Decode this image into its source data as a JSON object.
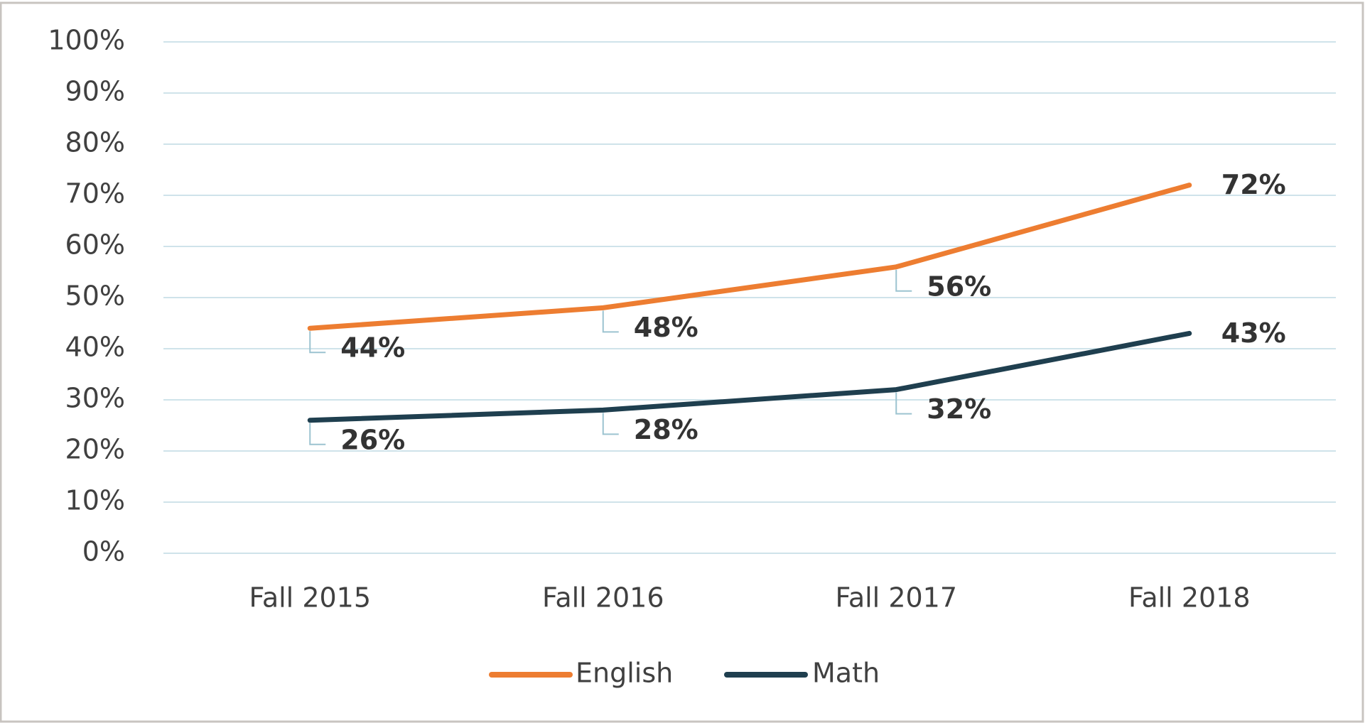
{
  "chart_data": {
    "type": "line",
    "categories": [
      "Fall 2015",
      "Fall 2016",
      "Fall 2017",
      "Fall 2018"
    ],
    "series": [
      {
        "name": "English",
        "color": "#ed7d31",
        "values": [
          44,
          48,
          56,
          72
        ],
        "value_labels": [
          "44%",
          "48%",
          "56%",
          "72%"
        ]
      },
      {
        "name": "Math",
        "color": "#1f3f4f",
        "values": [
          26,
          28,
          32,
          43
        ],
        "value_labels": [
          "26%",
          "28%",
          "32%",
          "43%"
        ]
      }
    ],
    "ylim": [
      0,
      100
    ],
    "yticks": [
      {
        "value": 0,
        "label": "0%"
      },
      {
        "value": 10,
        "label": "10%"
      },
      {
        "value": 20,
        "label": "20%"
      },
      {
        "value": 30,
        "label": "30%"
      },
      {
        "value": 40,
        "label": "40%"
      },
      {
        "value": 50,
        "label": "50%"
      },
      {
        "value": 60,
        "label": "60%"
      },
      {
        "value": 70,
        "label": "70%"
      },
      {
        "value": 80,
        "label": "80%"
      },
      {
        "value": 90,
        "label": "90%"
      },
      {
        "value": 100,
        "label": "100%"
      }
    ],
    "grid": true,
    "legend": "bottom"
  }
}
